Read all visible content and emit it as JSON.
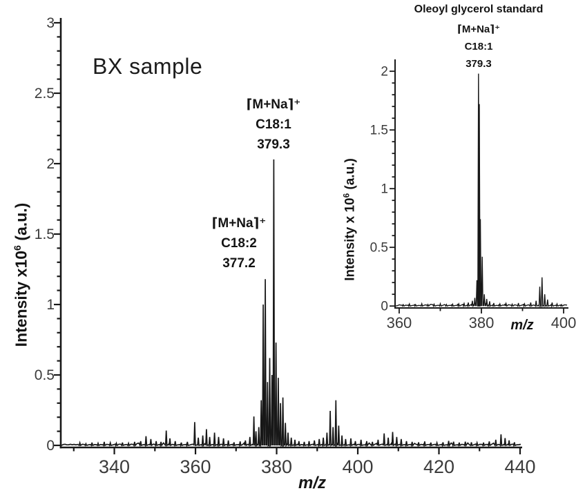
{
  "figure": {
    "background": "#ffffff",
    "ink_color": "#181818",
    "tick_label_color": "#3b3b3b"
  },
  "chart_data": [
    {
      "id": "bx-sample-spectrum",
      "type": "line",
      "subtype": "mass-spectrum-sticks",
      "in_plot_label": "BX sample",
      "xlabel": "m/z",
      "ylabel": "Intensity x10⁶ (a.u.)",
      "ylabel_parts": {
        "prefix": "Intensity x10",
        "sup": "6",
        "suffix": " (a.u.)"
      },
      "xlim": [
        326.8,
        440
      ],
      "ylim": [
        0,
        3.04
      ],
      "x_ticks": [
        340,
        360,
        380,
        400,
        420,
        440
      ],
      "x_minor_step": 10,
      "y_ticks": [
        [
          0,
          "0"
        ],
        [
          0.5,
          "0.5"
        ],
        [
          1,
          "1"
        ],
        [
          1.5,
          "1.5"
        ],
        [
          2,
          "2"
        ],
        [
          2.5,
          "2.5"
        ],
        [
          3,
          "3"
        ]
      ],
      "y_minor_step": 0.1,
      "grid": false,
      "annotations": [
        {
          "lines": [
            "⌈M+Na⌉⁺",
            "C18:1",
            "379.3"
          ],
          "peak_mz": 379.3,
          "peak_intensity": 2.03
        },
        {
          "lines": [
            "⌈M+Na⌉⁺",
            "C18:2",
            "377.2"
          ],
          "peak_mz": 377.2,
          "peak_intensity": 1.18
        }
      ],
      "peaks": [
        [
          331.5,
          0.018
        ],
        [
          333,
          0.012
        ],
        [
          334.5,
          0.02
        ],
        [
          336,
          0.015
        ],
        [
          337.5,
          0.025
        ],
        [
          339,
          0.018
        ],
        [
          340.5,
          0.015
        ],
        [
          342,
          0.02
        ],
        [
          343.5,
          0.015
        ],
        [
          345,
          0.025
        ],
        [
          346.5,
          0.03
        ],
        [
          347.8,
          0.065
        ],
        [
          349,
          0.045
        ],
        [
          350.3,
          0.03
        ],
        [
          351.5,
          0.025
        ],
        [
          352.8,
          0.105
        ],
        [
          353.7,
          0.05
        ],
        [
          355,
          0.03
        ],
        [
          356.5,
          0.02
        ],
        [
          358,
          0.025
        ],
        [
          359.8,
          0.165
        ],
        [
          360.7,
          0.055
        ],
        [
          361.8,
          0.07
        ],
        [
          362.7,
          0.115
        ],
        [
          363.5,
          0.06
        ],
        [
          364.7,
          0.09
        ],
        [
          365.7,
          0.06
        ],
        [
          366.9,
          0.05
        ],
        [
          368.1,
          0.035
        ],
        [
          369.5,
          0.022
        ],
        [
          371,
          0.028
        ],
        [
          372.3,
          0.035
        ],
        [
          373.4,
          0.06
        ],
        [
          374.4,
          0.205
        ],
        [
          374.9,
          0.1
        ],
        [
          375.6,
          0.13
        ],
        [
          376.2,
          0.32
        ],
        [
          376.7,
          1.0
        ],
        [
          377.2,
          1.18
        ],
        [
          377.75,
          0.45
        ],
        [
          378.3,
          0.62
        ],
        [
          378.85,
          0.5
        ],
        [
          379.3,
          2.03
        ],
        [
          379.85,
          0.73
        ],
        [
          380.4,
          0.48
        ],
        [
          380.95,
          0.3
        ],
        [
          381.55,
          0.34
        ],
        [
          382.15,
          0.16
        ],
        [
          382.8,
          0.09
        ],
        [
          383.6,
          0.055
        ],
        [
          384.5,
          0.04
        ],
        [
          385.5,
          0.03
        ],
        [
          386.8,
          0.025
        ],
        [
          388,
          0.03
        ],
        [
          389.3,
          0.035
        ],
        [
          390.5,
          0.045
        ],
        [
          391.5,
          0.055
        ],
        [
          392.4,
          0.09
        ],
        [
          393.2,
          0.245
        ],
        [
          393.9,
          0.13
        ],
        [
          394.6,
          0.32
        ],
        [
          395.3,
          0.14
        ],
        [
          396.1,
          0.07
        ],
        [
          397,
          0.045
        ],
        [
          398.3,
          0.05
        ],
        [
          399.4,
          0.03
        ],
        [
          400.8,
          0.04
        ],
        [
          402.2,
          0.03
        ],
        [
          403.6,
          0.025
        ],
        [
          405,
          0.04
        ],
        [
          406.5,
          0.085
        ],
        [
          407.5,
          0.055
        ],
        [
          408.6,
          0.095
        ],
        [
          409.6,
          0.06
        ],
        [
          410.7,
          0.045
        ],
        [
          412,
          0.03
        ],
        [
          413.4,
          0.025
        ],
        [
          415,
          0.022
        ],
        [
          416.5,
          0.028
        ],
        [
          418,
          0.02
        ],
        [
          419.5,
          0.018
        ],
        [
          421,
          0.022
        ],
        [
          422.4,
          0.032
        ],
        [
          423.6,
          0.026
        ],
        [
          425,
          0.02
        ],
        [
          426.5,
          0.026
        ],
        [
          428,
          0.022
        ],
        [
          429.4,
          0.018
        ],
        [
          431,
          0.02
        ],
        [
          432.4,
          0.028
        ],
        [
          434,
          0.04
        ],
        [
          435.3,
          0.078
        ],
        [
          436.3,
          0.052
        ],
        [
          437.3,
          0.036
        ],
        [
          438.6,
          0.022
        ]
      ]
    },
    {
      "id": "oleoyl-glycerol-standard-spectrum",
      "type": "line",
      "subtype": "mass-spectrum-sticks",
      "title": "Oleoyl glycerol standard",
      "xlabel": "m/z",
      "ylabel": "Intensity x 10⁶ (a.u.)",
      "ylabel_parts": {
        "prefix": "Intensity x 10",
        "sup": "6",
        "suffix": " (a.u.)"
      },
      "xlim": [
        359,
        401
      ],
      "ylim": [
        0,
        2.12
      ],
      "x_ticks": [
        360,
        380,
        400
      ],
      "x_minor_step": 10,
      "y_ticks": [
        [
          0,
          "0"
        ],
        [
          0.5,
          "0.5"
        ],
        [
          1,
          "1"
        ],
        [
          1.5,
          "1.5"
        ],
        [
          2,
          "2"
        ]
      ],
      "y_minor_step": 0.1,
      "grid": false,
      "annotations": [
        {
          "lines": [
            "⌈M+Na⌉⁺",
            "C18:1",
            "379.3"
          ],
          "peak_mz": 379.3,
          "peak_intensity": 1.98
        }
      ],
      "peaks": [
        [
          361,
          0.012
        ],
        [
          362.5,
          0.018
        ],
        [
          364,
          0.012
        ],
        [
          365.5,
          0.02
        ],
        [
          367,
          0.013
        ],
        [
          368.5,
          0.016
        ],
        [
          370,
          0.02
        ],
        [
          371.5,
          0.013
        ],
        [
          373,
          0.016
        ],
        [
          374.5,
          0.018
        ],
        [
          375.8,
          0.022
        ],
        [
          376.8,
          0.03
        ],
        [
          377.8,
          0.045
        ],
        [
          378.4,
          0.07
        ],
        [
          378.9,
          0.22
        ],
        [
          379.3,
          1.98
        ],
        [
          379.5,
          1.72
        ],
        [
          379.75,
          0.74
        ],
        [
          380.2,
          0.42
        ],
        [
          380.7,
          0.1
        ],
        [
          381.3,
          0.06
        ],
        [
          382,
          0.04
        ],
        [
          383,
          0.025
        ],
        [
          384.5,
          0.018
        ],
        [
          386,
          0.022
        ],
        [
          387.5,
          0.016
        ],
        [
          389,
          0.025
        ],
        [
          390.5,
          0.018
        ],
        [
          392,
          0.03
        ],
        [
          393.3,
          0.045
        ],
        [
          394.2,
          0.165
        ],
        [
          394.75,
          0.245
        ],
        [
          395.4,
          0.1
        ],
        [
          396.1,
          0.055
        ],
        [
          397.2,
          0.03
        ],
        [
          398.4,
          0.018
        ],
        [
          399.5,
          0.012
        ]
      ]
    }
  ]
}
